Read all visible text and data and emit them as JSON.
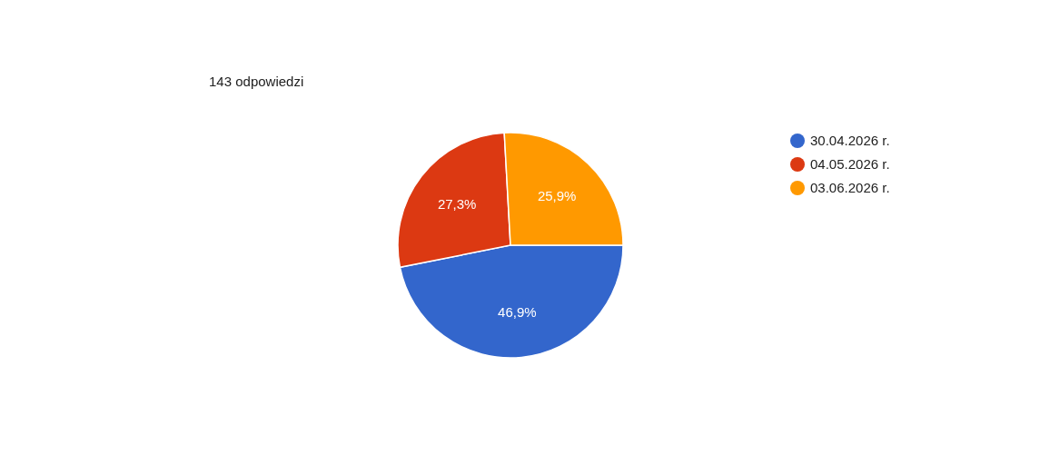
{
  "chart_data": {
    "type": "pie",
    "title": "143 odpowiedzi",
    "categories": [
      "30.04.2026 r.",
      "04.05.2026 r.",
      "03.06.2026 r."
    ],
    "values": [
      46.9,
      27.3,
      25.9
    ],
    "colors": [
      "#3366cc",
      "#dc3912",
      "#ff9900"
    ],
    "value_labels": [
      "46,9%",
      "27,3%",
      "25,9%"
    ],
    "legend": "right"
  }
}
